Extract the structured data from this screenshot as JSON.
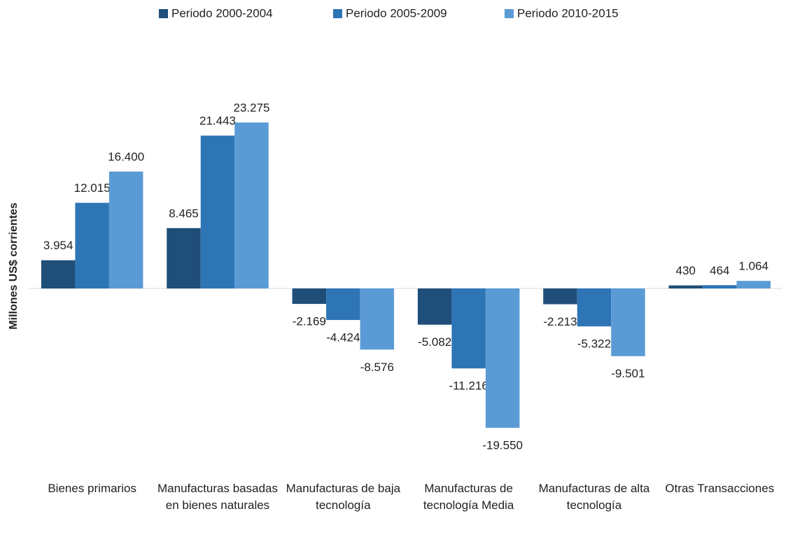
{
  "chart_data": {
    "type": "bar",
    "y_label": "Millones US$ corrientes",
    "categories": [
      "Bienes primarios",
      "Manufacturas basadas en bienes naturales",
      "Manufacturas de baja tecnología",
      "Manufacturas de tecnología Media",
      "Manufacturas de alta tecnología",
      "Otras Transacciones"
    ],
    "series": [
      {
        "name": "Periodo 2000-2004",
        "color": "#1f4e79",
        "values": [
          3954,
          8465,
          -2169,
          -5082,
          -2213,
          430
        ],
        "value_labels": [
          "3.954",
          "8.465",
          "-2.169",
          "-5.082",
          "-2.213",
          "430"
        ]
      },
      {
        "name": "Periodo 2005-2009",
        "color": "#2e75b6",
        "values": [
          12015,
          21443,
          -4424,
          -11216,
          -5322,
          464
        ],
        "value_labels": [
          "12.015",
          "21.443",
          "-4.424",
          "-11.216",
          "-5.322",
          "464"
        ]
      },
      {
        "name": "Periodo 2010-2015",
        "color": "#5b9bd5",
        "values": [
          16400,
          23275,
          -8576,
          -19550,
          -9501,
          1064
        ],
        "value_labels": [
          "16.400",
          "23.275",
          "-8.576",
          "-19.550",
          "-9.501",
          "1.064"
        ]
      }
    ],
    "legend": "top"
  }
}
